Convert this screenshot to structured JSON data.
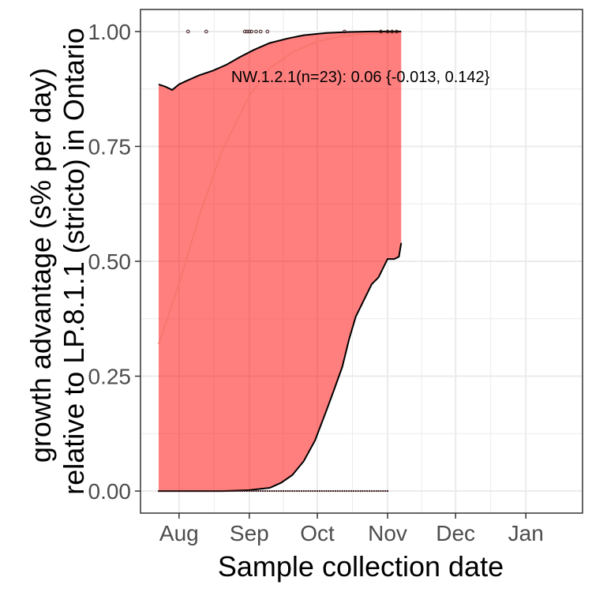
{
  "chart_data": {
    "type": "area",
    "title": "",
    "xlabel": "Sample collection date",
    "ylabel_lines": [
      "growth advantage (s% per day)",
      "relative to LP.8.1.1 (stricto) in Ontario"
    ],
    "x_axis": {
      "type": "date",
      "range": [
        "2025-07-15",
        "2026-01-26"
      ],
      "ticks": [
        "2025-08-01",
        "2025-09-01",
        "2025-10-01",
        "2025-11-01",
        "2025-12-01",
        "2026-01-01"
      ],
      "tick_labels": [
        "Aug",
        "Sep",
        "Oct",
        "Nov",
        "Dec",
        "Jan"
      ]
    },
    "y_axis": {
      "range": [
        -0.048,
        1.048
      ],
      "ticks": [
        0,
        0.25,
        0.5,
        0.75,
        1.0
      ],
      "tick_labels": [
        "0.00",
        "0.25",
        "0.50",
        "0.75",
        "1.00"
      ]
    },
    "grid": true,
    "annotation": "NW.1.2.1(n=23): 0.06 {-0.013, 0.142}",
    "colors": {
      "ribbon": "#ff0000",
      "fit_line": "#f8766d",
      "band_edges": "#000000",
      "points": "#3d1a1a",
      "grid": "#ebebeb",
      "panel_border": "#333333"
    },
    "series": [
      {
        "kind": "fit",
        "x": [
          "2025-07-23",
          "2025-08-01",
          "2025-08-10",
          "2025-08-20",
          "2025-09-01",
          "2025-09-10",
          "2025-09-20",
          "2025-10-01",
          "2025-10-10",
          "2025-10-20",
          "2025-11-01",
          "2025-11-07"
        ],
        "y": [
          0.32,
          0.45,
          0.6,
          0.74,
          0.86,
          0.92,
          0.955,
          0.978,
          0.988,
          0.994,
          0.997,
          0.998
        ]
      },
      {
        "kind": "ci_upper",
        "x": [
          "2025-07-23",
          "2025-07-26",
          "2025-07-29",
          "2025-08-01",
          "2025-08-04",
          "2025-08-10",
          "2025-08-16",
          "2025-08-22",
          "2025-08-28",
          "2025-09-03",
          "2025-09-10",
          "2025-09-18",
          "2025-09-25",
          "2025-10-05",
          "2025-10-15",
          "2025-10-25",
          "2025-11-07"
        ],
        "y": [
          0.885,
          0.88,
          0.873,
          0.885,
          0.892,
          0.905,
          0.915,
          0.928,
          0.945,
          0.96,
          0.975,
          0.985,
          0.992,
          0.997,
          0.999,
          1.0,
          1.0
        ]
      },
      {
        "kind": "ci_lower",
        "x": [
          "2025-07-23",
          "2025-08-20",
          "2025-09-01",
          "2025-09-10",
          "2025-09-15",
          "2025-09-20",
          "2025-09-25",
          "2025-09-30",
          "2025-10-05",
          "2025-10-08",
          "2025-10-12",
          "2025-10-15",
          "2025-10-18",
          "2025-10-22",
          "2025-10-25",
          "2025-10-28",
          "2025-11-01",
          "2025-11-04",
          "2025-11-06",
          "2025-11-07"
        ],
        "y": [
          0.0,
          0.0,
          0.002,
          0.007,
          0.018,
          0.035,
          0.065,
          0.11,
          0.175,
          0.215,
          0.27,
          0.33,
          0.38,
          0.42,
          0.45,
          0.465,
          0.505,
          0.505,
          0.51,
          0.54
        ]
      },
      {
        "kind": "observations_top",
        "x": [
          "2025-08-05",
          "2025-08-13",
          "2025-08-30",
          "2025-08-31",
          "2025-09-01",
          "2025-09-02",
          "2025-09-04",
          "2025-09-06",
          "2025-09-09",
          "2025-10-13",
          "2025-10-29",
          "2025-11-01",
          "2025-11-03",
          "2025-11-05"
        ],
        "y": [
          1,
          1,
          1,
          1,
          1,
          1,
          1,
          1,
          1,
          1,
          1,
          1,
          1,
          1
        ]
      },
      {
        "kind": "observations_bottom",
        "x_range": [
          "2025-07-23",
          "2025-11-01"
        ],
        "y": 0
      }
    ]
  }
}
